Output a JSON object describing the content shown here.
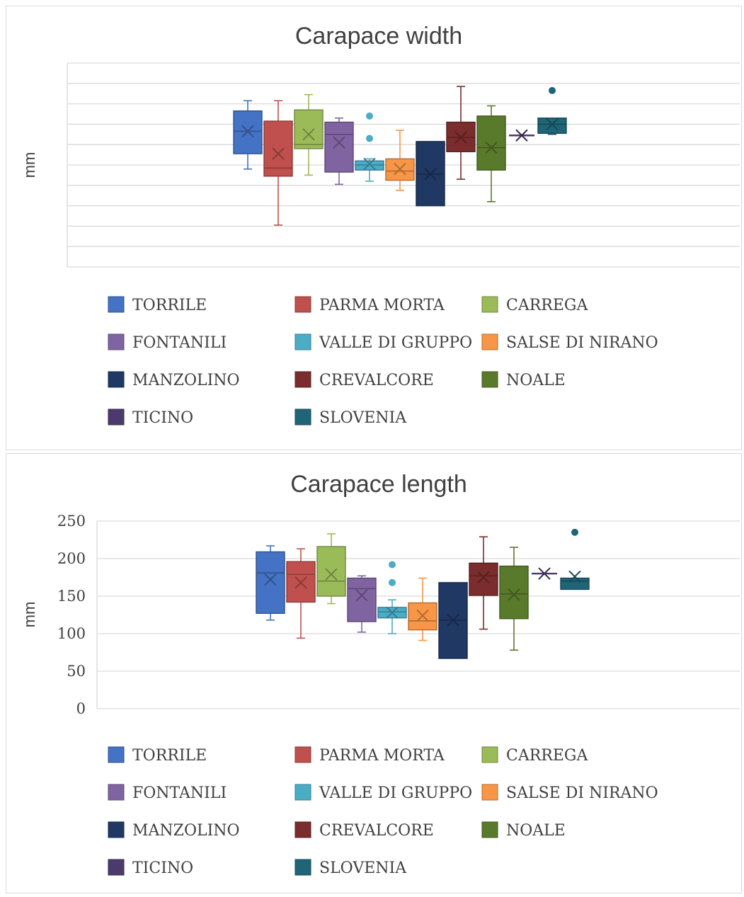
{
  "chart_data": [
    {
      "type": "box",
      "title": "Carapace width",
      "ylabel": "mm",
      "ylim": [
        0,
        200
      ],
      "y_tick_labels_visible": false,
      "grid": true,
      "legend_position": "bottom",
      "series": [
        {
          "name": "TORRILE",
          "color": "#4472C4",
          "min": 96,
          "q1": 111,
          "median": 133,
          "q3": 153,
          "max": 163,
          "mean": 133
        },
        {
          "name": "PARMA MORTA",
          "color": "#C0504D",
          "min": 41,
          "q1": 89,
          "median": 97,
          "q3": 143,
          "max": 163,
          "mean": 111
        },
        {
          "name": "CARREGA",
          "color": "#9BBB59",
          "min": 90,
          "q1": 116,
          "median": 120,
          "q3": 154,
          "max": 169,
          "mean": 130
        },
        {
          "name": "FONTANILI",
          "color": "#8064A2",
          "min": 81,
          "q1": 93,
          "median": 130,
          "q3": 142,
          "max": 146,
          "mean": 122
        },
        {
          "name": "VALLE DI GRUPPO",
          "color": "#4BACC6",
          "min": 84,
          "q1": 95,
          "median": 100,
          "q3": 104,
          "max": 106,
          "mean": 101,
          "outliers": [
            126,
            148
          ]
        },
        {
          "name": "SALSE DI NIRANO",
          "color": "#F79646",
          "min": 75,
          "q1": 85,
          "median": 94,
          "q3": 106,
          "max": 134,
          "mean": 96
        },
        {
          "name": "MANZOLINO",
          "color": "#1F3864",
          "min": 60,
          "q1": 60,
          "median": 91,
          "q3": 123,
          "max": 123,
          "mean": 91
        },
        {
          "name": "CREVALCORE",
          "color": "#7B2C2C",
          "min": 86,
          "q1": 113,
          "median": 127,
          "q3": 142,
          "max": 177,
          "mean": 127
        },
        {
          "name": "NOALE",
          "color": "#5A7A2B",
          "min": 64,
          "q1": 95,
          "median": 117,
          "q3": 148,
          "max": 158,
          "mean": 117
        },
        {
          "name": "TICINO",
          "color": "#4B3A6B",
          "min": 129,
          "q1": 129,
          "median": 129,
          "q3": 129,
          "max": 129,
          "mean": 129
        },
        {
          "name": "SLOVENIA",
          "color": "#1F6577",
          "min": 130,
          "q1": 131,
          "median": 140,
          "q3": 146,
          "max": 146,
          "mean": 140,
          "outliers": [
            173
          ]
        }
      ]
    },
    {
      "type": "box",
      "title": "Carapace length",
      "ylabel": "mm",
      "ylim": [
        0,
        250
      ],
      "y_ticks": [
        "0",
        "50",
        "100",
        "150",
        "200",
        "250"
      ],
      "grid": true,
      "legend_position": "bottom",
      "series": [
        {
          "name": "TORRILE",
          "color": "#4472C4",
          "min": 118,
          "q1": 127,
          "median": 181,
          "q3": 209,
          "max": 217,
          "mean": 172
        },
        {
          "name": "PARMA MORTA",
          "color": "#C0504D",
          "min": 94,
          "q1": 142,
          "median": 179,
          "q3": 196,
          "max": 213,
          "mean": 168
        },
        {
          "name": "CARREGA",
          "color": "#9BBB59",
          "min": 140,
          "q1": 150,
          "median": 170,
          "q3": 216,
          "max": 233,
          "mean": 179
        },
        {
          "name": "FONTANILI",
          "color": "#8064A2",
          "min": 102,
          "q1": 116,
          "median": 160,
          "q3": 174,
          "max": 177,
          "mean": 151
        },
        {
          "name": "VALLE DI GRUPPO",
          "color": "#4BACC6",
          "min": 100,
          "q1": 121,
          "median": 129,
          "q3": 135,
          "max": 145,
          "mean": 128,
          "outliers": [
            168,
            192
          ]
        },
        {
          "name": "SALSE DI NIRANO",
          "color": "#F79646",
          "min": 91,
          "q1": 105,
          "median": 117,
          "q3": 141,
          "max": 174,
          "mean": 124
        },
        {
          "name": "MANZOLINO",
          "color": "#1F3864",
          "min": 67,
          "q1": 67,
          "median": 118,
          "q3": 168,
          "max": 168,
          "mean": 118
        },
        {
          "name": "CREVALCORE",
          "color": "#7B2C2C",
          "min": 106,
          "q1": 151,
          "median": 177,
          "q3": 194,
          "max": 229,
          "mean": 175
        },
        {
          "name": "NOALE",
          "color": "#5A7A2B",
          "min": 78,
          "q1": 120,
          "median": 153,
          "q3": 190,
          "max": 215,
          "mean": 152
        },
        {
          "name": "TICINO",
          "color": "#4B3A6B",
          "min": 180,
          "q1": 180,
          "median": 180,
          "q3": 180,
          "max": 180,
          "mean": 180
        },
        {
          "name": "SLOVENIA",
          "color": "#1F6577",
          "min": 159,
          "q1": 159,
          "median": 170,
          "q3": 174,
          "max": 174,
          "mean": 176,
          "outliers": [
            235
          ]
        }
      ]
    }
  ]
}
